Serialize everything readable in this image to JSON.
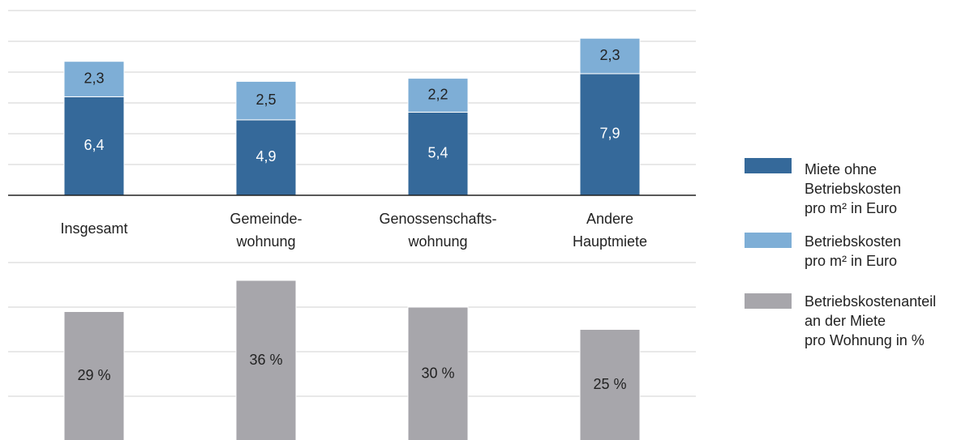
{
  "chart_data": [
    {
      "type": "stacked_bar",
      "categories": [
        [
          "Insgesamt"
        ],
        [
          "Gemeinde-",
          "wohnung"
        ],
        [
          "Genossenschafts-",
          "wohnung"
        ],
        [
          "Andere",
          "Hauptmiete"
        ]
      ],
      "series": [
        {
          "name": [
            "Miete ohne",
            "Betriebskosten",
            "pro m² in Euro"
          ],
          "color": "#35699a",
          "values": [
            6.4,
            4.9,
            5.4,
            7.9
          ],
          "value_labels": [
            "6,4",
            "4,9",
            "5,4",
            "7,9"
          ]
        },
        {
          "name": [
            "Betriebskosten",
            "pro m² in Euro"
          ],
          "color": "#7eaed6",
          "values": [
            2.3,
            2.5,
            2.2,
            2.3
          ],
          "value_labels": [
            "2,3",
            "2,5",
            "2,2",
            "2,3"
          ]
        }
      ],
      "ylim": [
        0,
        12
      ],
      "yticks": [
        0,
        2,
        4,
        6,
        8,
        10,
        12
      ],
      "grid": true
    },
    {
      "type": "bar",
      "series": [
        {
          "name": [
            "Betriebskostenanteil",
            "an der Miete",
            "pro Wohnung in %"
          ],
          "color": "#a7a6ab",
          "values": [
            29,
            36,
            30,
            25
          ],
          "value_labels": [
            "29 %",
            "36 %",
            "30 %",
            "25 %"
          ]
        }
      ],
      "ylim": [
        0,
        40
      ],
      "yticks": [
        0,
        10,
        20,
        30,
        40
      ],
      "grid": true
    }
  ]
}
